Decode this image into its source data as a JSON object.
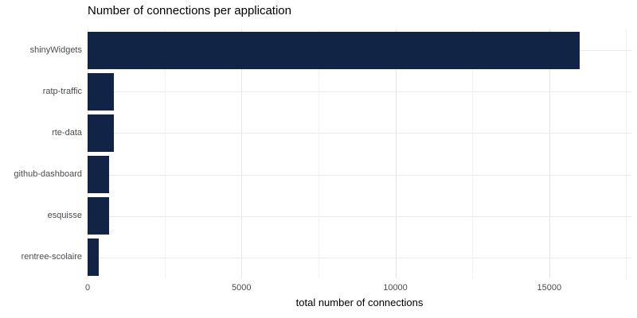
{
  "chart": {
    "title": "Number of connections per application",
    "xlabel": "total number of connections"
  },
  "chart_data": {
    "type": "bar",
    "orientation": "horizontal",
    "title": "Number of connections per application",
    "xlabel": "total number of connections",
    "ylabel": "",
    "categories": [
      "shinyWidgets",
      "ratp-traffic",
      "rte-data",
      "github-dashboard",
      "esquisse",
      "rentree-scolaire"
    ],
    "values": [
      16000,
      860,
      850,
      700,
      690,
      350
    ],
    "xlim": [
      0,
      17670
    ],
    "x_major_ticks": [
      0,
      5000,
      10000,
      15000
    ],
    "x_minor_ticks": [
      2500,
      7500,
      12500,
      17500
    ],
    "grid": true,
    "legend": false,
    "bar_color": "#112446",
    "background_color": "#ffffff",
    "major_grid_color": "#e6e6e6",
    "minor_grid_color": "#f2f2f2",
    "tick_label_color": "#4d4d4d"
  }
}
